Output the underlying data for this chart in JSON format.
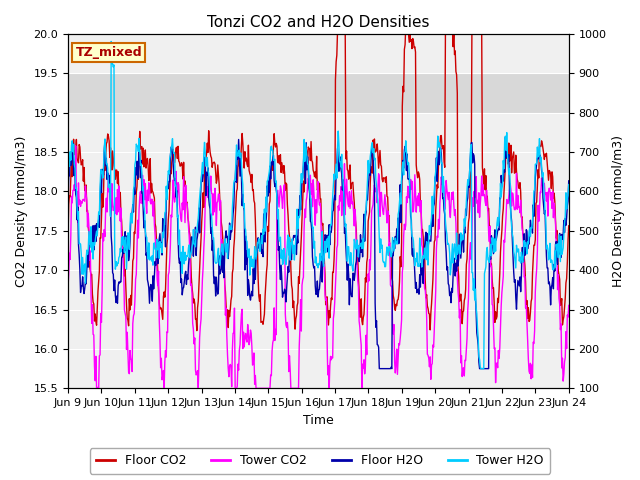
{
  "title": "Tonzi CO2 and H2O Densities",
  "xlabel": "Time",
  "ylabel_left": "CO2 Density (mmol/m3)",
  "ylabel_right": "H2O Density (mmol/m3)",
  "ylim_left": [
    15.5,
    20.0
  ],
  "ylim_right": [
    100,
    1000
  ],
  "yticks_left": [
    15.5,
    16.0,
    16.5,
    17.0,
    17.5,
    18.0,
    18.5,
    19.0,
    19.5,
    20.0
  ],
  "yticks_right": [
    100,
    200,
    300,
    400,
    500,
    600,
    700,
    800,
    900,
    1000
  ],
  "xtick_labels": [
    "Jun 9",
    "Jun 10",
    "Jun 11",
    "Jun 12",
    "Jun 13",
    "Jun 14",
    "Jun 15",
    "Jun 16",
    "Jun 17",
    "Jun 18",
    "Jun 19",
    "Jun 20",
    "Jun 21",
    "Jun 22",
    "Jun 23",
    "Jun 24"
  ],
  "xtick_positions": [
    0,
    1,
    2,
    3,
    4,
    5,
    6,
    7,
    8,
    9,
    10,
    11,
    12,
    13,
    14,
    15
  ],
  "shaded_band": [
    19.0,
    19.5
  ],
  "shaded_color": "#d8d8d8",
  "annotation_text": "TZ_mixed",
  "annotation_bg_color": "#ffffcc",
  "annotation_border_color": "#cc6600",
  "annotation_text_color": "#aa0000",
  "legend_entries": [
    "Floor CO2",
    "Tower CO2",
    "Floor H2O",
    "Tower H2O"
  ],
  "colors": {
    "floor_co2": "#cc0000",
    "tower_co2": "#ff00ff",
    "floor_h2o": "#0000aa",
    "tower_h2o": "#00ccff"
  },
  "plot_bg_color": "#f0f0f0",
  "fig_bg_color": "#ffffff",
  "linewidth": 1.0,
  "title_fontsize": 11,
  "axis_fontsize": 9,
  "tick_fontsize": 8,
  "legend_fontsize": 9
}
